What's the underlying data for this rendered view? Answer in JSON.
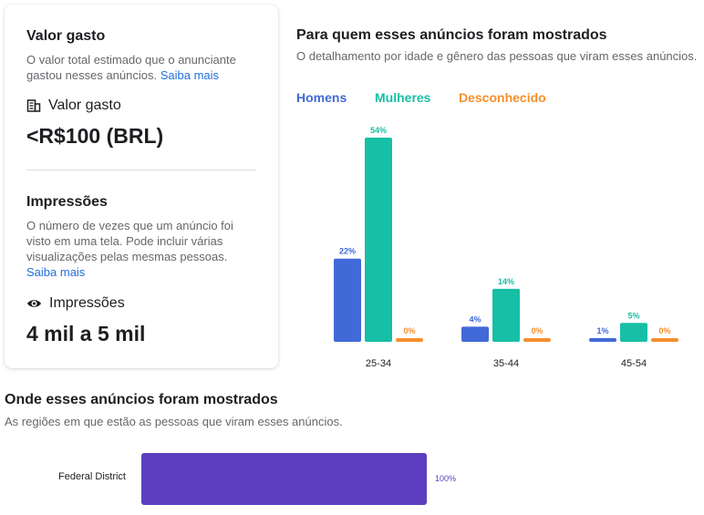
{
  "spend": {
    "title": "Valor gasto",
    "description": "O valor total estimado que o anunciante gastou nesses anúncios.",
    "learn_more": "Saiba mais",
    "metric_label": "Valor gasto",
    "metric_value": "<R$100 (BRL)",
    "icon": "money-icon"
  },
  "impressions": {
    "title": "Impressões",
    "description": "O número de vezes que um anúncio foi visto em uma tela. Pode incluir várias visualizações pelas mesmas pessoas.",
    "learn_more": "Saiba mais",
    "metric_label": "Impressões",
    "metric_value": "4 mil a 5 mil",
    "icon": "eye-icon"
  },
  "audience": {
    "title": "Para quem esses anúncios foram mostrados",
    "subtitle": "O detalhamento por idade e gênero das pessoas que viram esses anúncios."
  },
  "regions": {
    "title": "Onde esses anúncios foram mostrados",
    "subtitle": "As regiões em que estão as pessoas que viram esses anúncios.",
    "items": [
      {
        "name": "Federal District",
        "value": 100,
        "label": "100%"
      }
    ],
    "color": "#5d3ebf"
  },
  "chart_data": {
    "type": "bar",
    "categories": [
      "25-34",
      "35-44",
      "45-54"
    ],
    "series": [
      {
        "name": "Homens",
        "color": "#4169d8",
        "values": [
          22,
          4,
          1
        ],
        "labels": [
          "22%",
          "4%",
          "1%"
        ]
      },
      {
        "name": "Mulheres",
        "color": "#16bfa6",
        "values": [
          54,
          14,
          5
        ],
        "labels": [
          "54%",
          "14%",
          "5%"
        ]
      },
      {
        "name": "Desconhecido",
        "color": "#f58f2c",
        "values": [
          0,
          0,
          0
        ],
        "labels": [
          "0%",
          "0%",
          "0%"
        ]
      }
    ],
    "ylim": [
      0,
      54
    ],
    "legend_position": "top-left",
    "grid": false
  }
}
